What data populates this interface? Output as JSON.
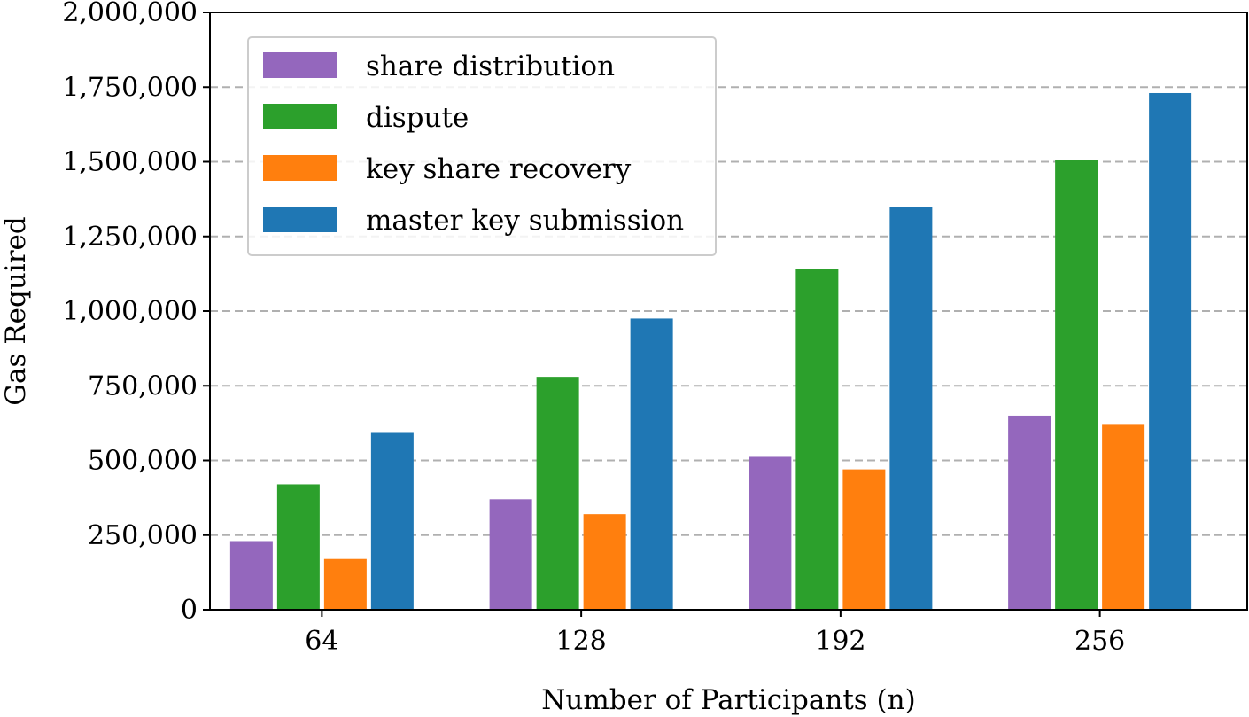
{
  "chart_data": {
    "type": "bar",
    "title": "",
    "xlabel": "Number of Participants (n)",
    "ylabel": "Gas Required",
    "categories": [
      "64",
      "128",
      "192",
      "256"
    ],
    "ylim": [
      0,
      2000000
    ],
    "yticks": [
      0,
      250000,
      500000,
      750000,
      1000000,
      1250000,
      1500000,
      1750000,
      2000000
    ],
    "ytick_labels": [
      "0",
      "250,000",
      "500,000",
      "750,000",
      "1,000,000",
      "1,250,000",
      "1,500,000",
      "1,750,000",
      "2,000,000"
    ],
    "grid": "y-dashed",
    "legend_position": "top-left",
    "series": [
      {
        "name": "share distribution",
        "color": "#9467bd",
        "values": [
          230000,
          370000,
          512000,
          650000
        ]
      },
      {
        "name": "dispute",
        "color": "#2ca02c",
        "values": [
          420000,
          780000,
          1140000,
          1505000
        ]
      },
      {
        "name": "key share recovery",
        "color": "#ff7f0e",
        "values": [
          170000,
          320000,
          470000,
          622000
        ]
      },
      {
        "name": "master key submission",
        "color": "#1f77b4",
        "values": [
          595000,
          975000,
          1350000,
          1730000
        ]
      }
    ]
  }
}
